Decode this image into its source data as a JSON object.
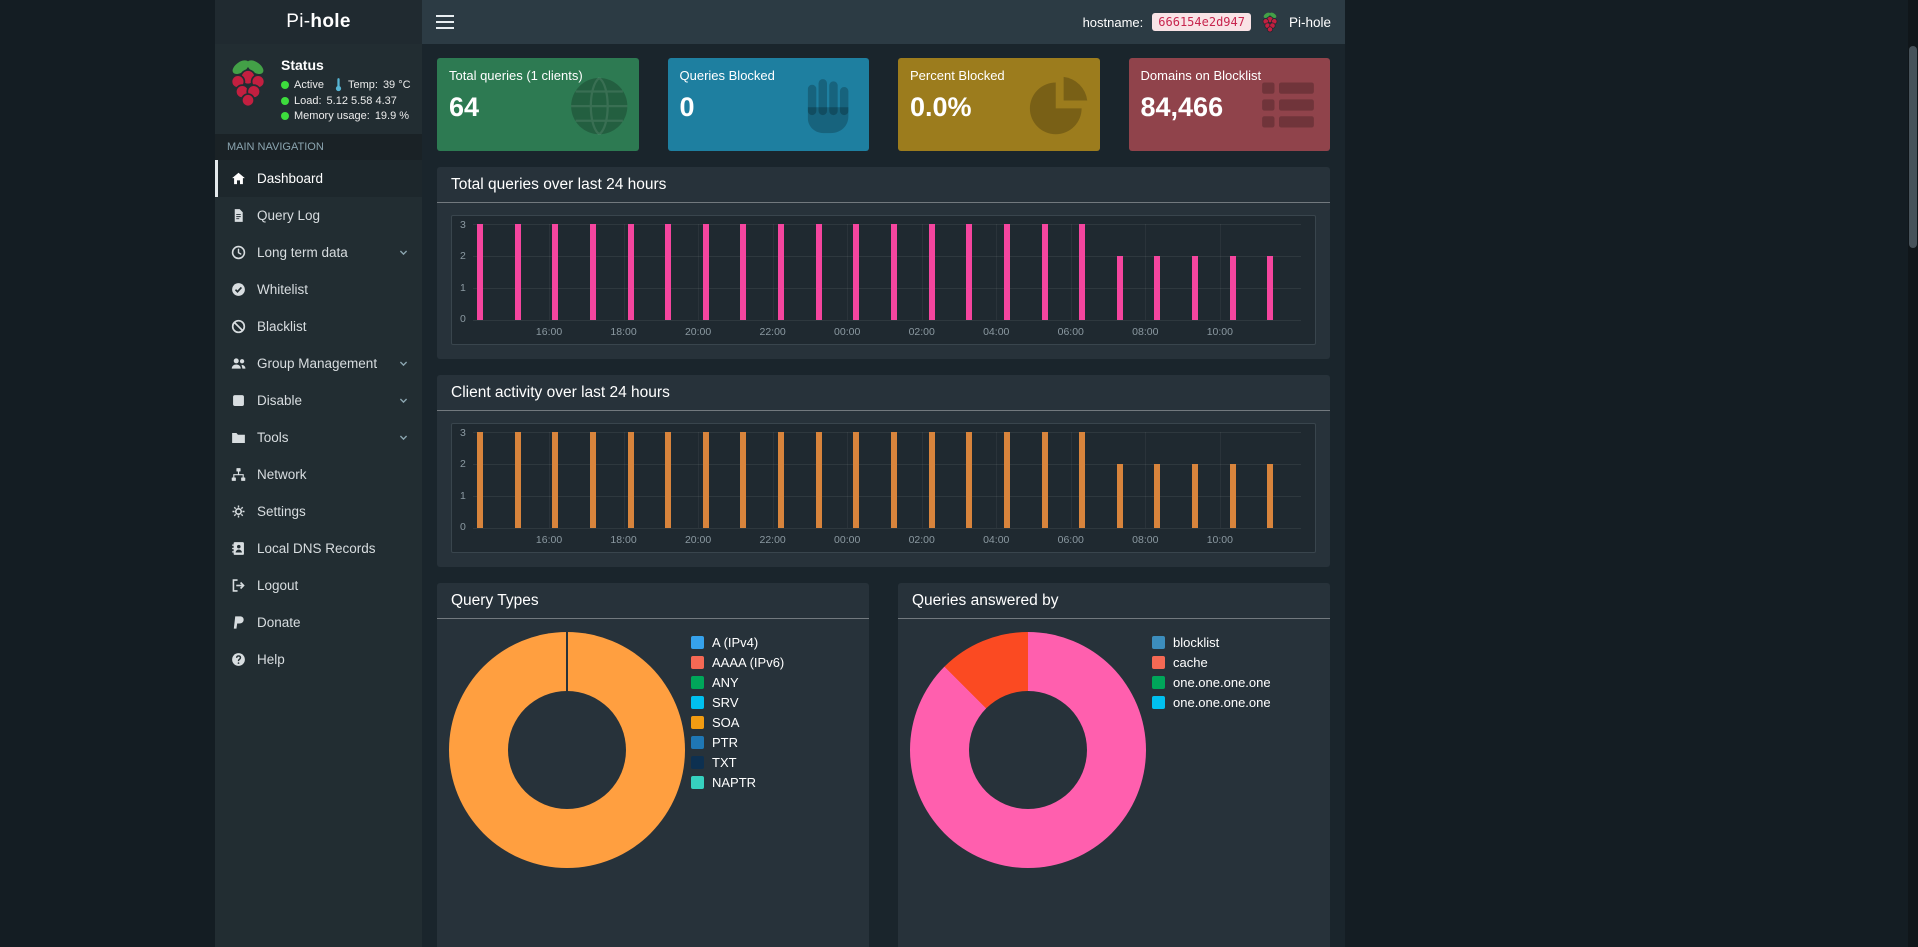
{
  "header": {
    "brand": {
      "prefix": "Pi-",
      "suffix": "hole"
    },
    "hostname_label": "hostname:",
    "hostname_value": "666154e2d947",
    "brand_right": "Pi-hole"
  },
  "sidebar": {
    "status": {
      "title": "Status",
      "active_label": "Active",
      "temp_label": "Temp:",
      "temp_value": "39 °C",
      "load_label": "Load:",
      "load_values": "5.12  5.58  4.37",
      "memory_label": "Memory usage:",
      "memory_value": "19.9 %"
    },
    "nav_section": "MAIN NAVIGATION",
    "items": [
      {
        "label": "Dashboard",
        "icon": "home",
        "active": true,
        "chevron": false
      },
      {
        "label": "Query Log",
        "icon": "file",
        "active": false,
        "chevron": false
      },
      {
        "label": "Long term data",
        "icon": "clock",
        "active": false,
        "chevron": true
      },
      {
        "label": "Whitelist",
        "icon": "check-circle",
        "active": false,
        "chevron": false
      },
      {
        "label": "Blacklist",
        "icon": "ban",
        "active": false,
        "chevron": false
      },
      {
        "label": "Group Management",
        "icon": "users",
        "active": false,
        "chevron": true
      },
      {
        "label": "Disable",
        "icon": "stop",
        "active": false,
        "chevron": true
      },
      {
        "label": "Tools",
        "icon": "folder",
        "active": false,
        "chevron": true
      },
      {
        "label": "Network",
        "icon": "network",
        "active": false,
        "chevron": false
      },
      {
        "label": "Settings",
        "icon": "gears",
        "active": false,
        "chevron": false
      },
      {
        "label": "Local DNS Records",
        "icon": "address-book",
        "active": false,
        "chevron": false
      },
      {
        "label": "Logout",
        "icon": "logout",
        "active": false,
        "chevron": false
      },
      {
        "label": "Donate",
        "icon": "donate",
        "active": false,
        "chevron": false
      },
      {
        "label": "Help",
        "icon": "help",
        "active": false,
        "chevron": false
      }
    ]
  },
  "cards": [
    {
      "title": "Total queries (1 clients)",
      "value": "64",
      "color": "#2d7a52",
      "icon": "globe"
    },
    {
      "title": "Queries Blocked",
      "value": "0",
      "color": "#1e7fa0",
      "icon": "hand"
    },
    {
      "title": "Percent Blocked",
      "value": "0.0%",
      "color": "#9c7c1d",
      "icon": "pie"
    },
    {
      "title": "Domains on Blocklist",
      "value": "84,466",
      "color": "#90434b",
      "icon": "list"
    }
  ],
  "chart_data": [
    {
      "type": "bar",
      "title": "Total queries over last 24 hours",
      "color": "#f5459e",
      "ylim": [
        0,
        3
      ],
      "yticks": [
        0,
        1,
        2,
        3
      ],
      "xticklabels": [
        "16:00",
        "18:00",
        "20:00",
        "22:00",
        "00:00",
        "02:00",
        "04:00",
        "06:00",
        "08:00",
        "10:00"
      ],
      "values": [
        3,
        3,
        3,
        3,
        3,
        3,
        3,
        3,
        3,
        3,
        3,
        3,
        3,
        3,
        3,
        3,
        3,
        2,
        2,
        2,
        2,
        2
      ],
      "grid": true,
      "legend_position": "none"
    },
    {
      "type": "bar",
      "title": "Client activity over last 24 hours",
      "color": "#d8843c",
      "ylim": [
        0,
        3
      ],
      "yticks": [
        0,
        1,
        2,
        3
      ],
      "xticklabels": [
        "16:00",
        "18:00",
        "20:00",
        "22:00",
        "00:00",
        "02:00",
        "04:00",
        "06:00",
        "08:00",
        "10:00"
      ],
      "values": [
        3,
        3,
        3,
        3,
        3,
        3,
        3,
        3,
        3,
        3,
        3,
        3,
        3,
        3,
        3,
        3,
        3,
        2,
        2,
        2,
        2,
        2
      ],
      "grid": true,
      "legend_position": "none"
    },
    {
      "type": "doughnut",
      "title": "Query Types",
      "slices": [
        {
          "label": "A (IPv4)",
          "pct": 100,
          "color": "#ff9f40"
        }
      ],
      "legend": [
        {
          "label": "A (IPv4)",
          "color": "#36a2eb"
        },
        {
          "label": "AAAA (IPv6)",
          "color": "#f56954"
        },
        {
          "label": "ANY",
          "color": "#00a65a"
        },
        {
          "label": "SRV",
          "color": "#00c0ef"
        },
        {
          "label": "SOA",
          "color": "#f39c12"
        },
        {
          "label": "PTR",
          "color": "#1f77b4"
        },
        {
          "label": "TXT",
          "color": "#0d3050"
        },
        {
          "label": "NAPTR",
          "color": "#36d1bf"
        }
      ],
      "legend_position": "right"
    },
    {
      "type": "doughnut",
      "title": "Queries answered by",
      "slices": [
        {
          "label": "one.one.one.one",
          "pct": 87.5,
          "color": "#ff5fae"
        },
        {
          "label": "cache",
          "pct": 12.5,
          "color": "#fb4a22"
        }
      ],
      "legend": [
        {
          "label": "blocklist",
          "color": "#3c8dbc"
        },
        {
          "label": "cache",
          "color": "#f56954"
        },
        {
          "label": "one.one.one.one",
          "color": "#00a65a"
        },
        {
          "label": "one.one.one.one",
          "color": "#00c0ef"
        }
      ],
      "legend_position": "right"
    }
  ]
}
